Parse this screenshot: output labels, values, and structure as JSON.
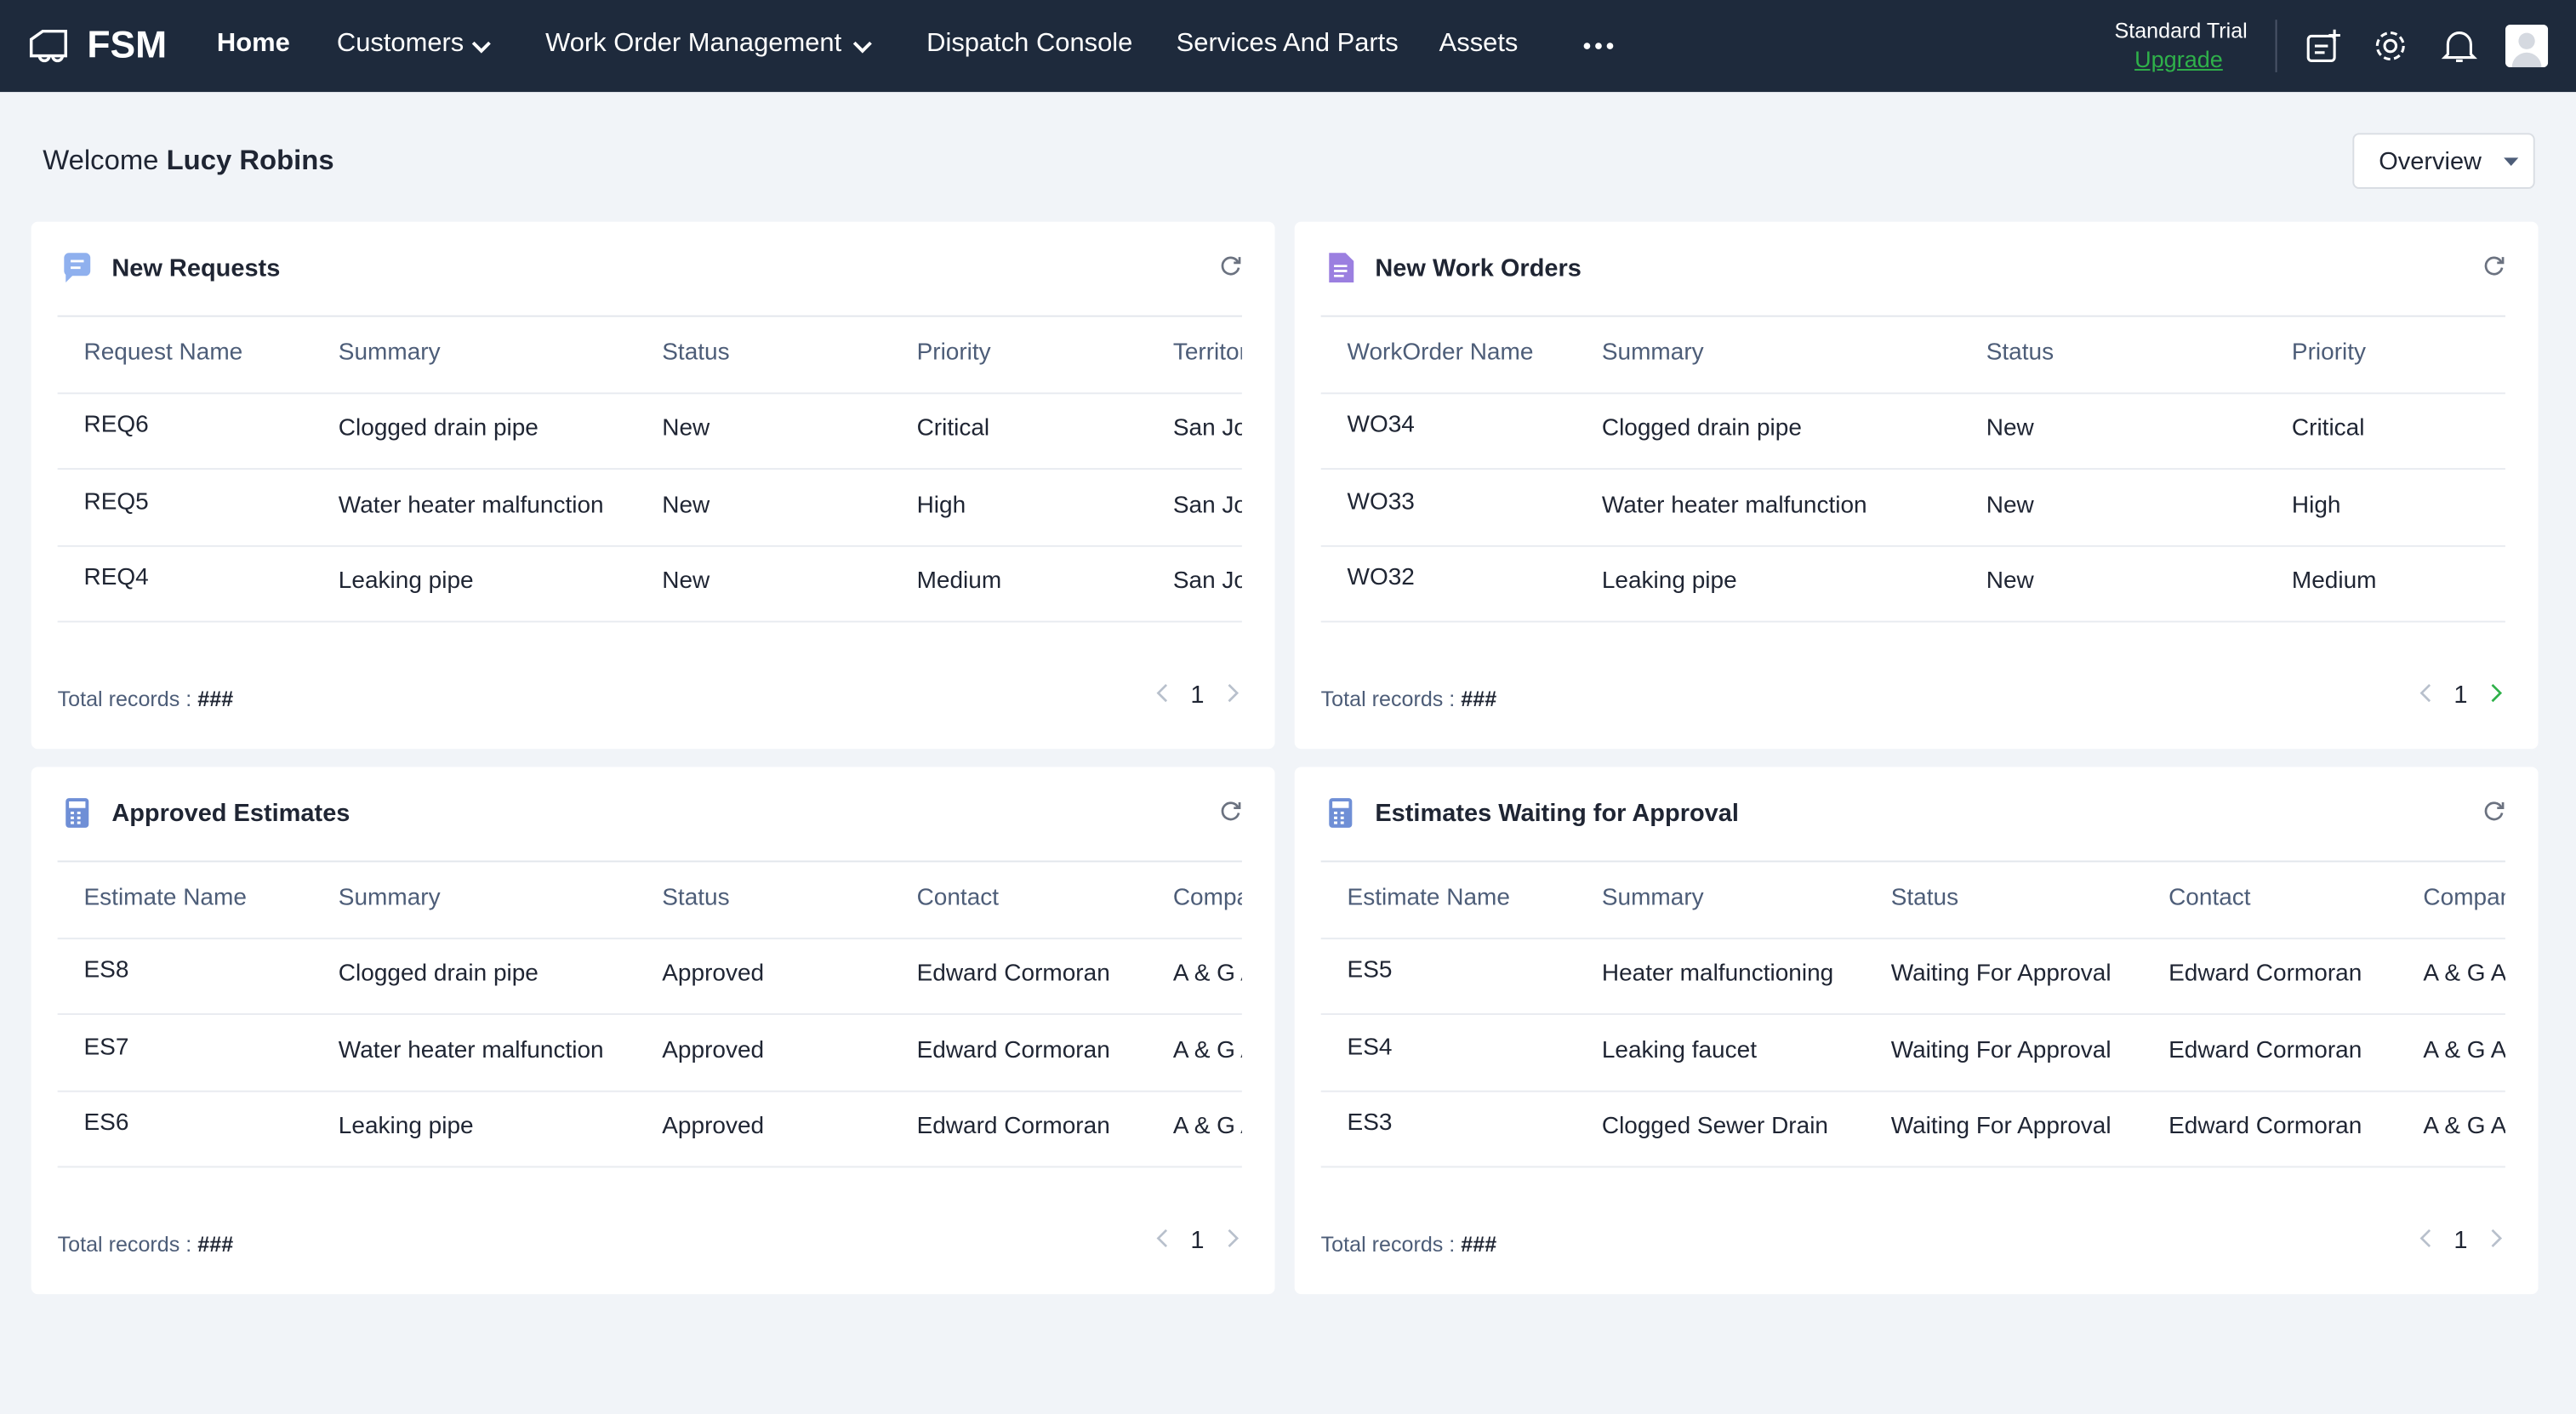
{
  "nav": {
    "brand": "FSM",
    "items": [
      "Home",
      "Customers",
      "Work Order Management",
      "Dispatch Console",
      "Services And Parts",
      "Assets"
    ],
    "plan": "Standard Trial",
    "upgrade": "Upgrade"
  },
  "welcome": {
    "greeting": "Welcome",
    "user": "Lucy Robins"
  },
  "view": "Overview",
  "panels": [
    {
      "title": "New Requests",
      "columns": [
        "Request Name",
        "Summary",
        "Status",
        "Priority",
        "Territory"
      ],
      "rows": [
        [
          "REQ6",
          "Clogged drain pipe",
          "New",
          "Critical",
          "San Jose"
        ],
        [
          "REQ5",
          "Water heater malfunction",
          "New",
          "High",
          "San Jose"
        ],
        [
          "REQ4",
          "Leaking pipe",
          "New",
          "Medium",
          "San Jose"
        ]
      ],
      "total_label": "Total records :",
      "total": "###",
      "page": "1"
    },
    {
      "title": "New Work Orders",
      "columns": [
        "WorkOrder Name",
        "Summary",
        "Status",
        "Priority"
      ],
      "rows": [
        [
          "WO34",
          "Clogged drain pipe",
          "New",
          "Critical"
        ],
        [
          "WO33",
          "Water heater malfunction",
          "New",
          "High"
        ],
        [
          "WO32",
          "Leaking pipe",
          "New",
          "Medium"
        ]
      ],
      "total_label": "Total records :",
      "total": "###",
      "page": "1"
    },
    {
      "title": "Approved Estimates",
      "columns": [
        "Estimate Name",
        "Summary",
        "Status",
        "Contact",
        "Company"
      ],
      "rows": [
        [
          "ES8",
          "Clogged drain pipe",
          "Approved",
          "Edward Cormoran",
          "A & G A"
        ],
        [
          "ES7",
          "Water heater malfunction",
          "Approved",
          "Edward Cormoran",
          "A & G A"
        ],
        [
          "ES6",
          "Leaking pipe",
          "Approved",
          "Edward Cormoran",
          "A & G A"
        ]
      ],
      "total_label": "Total records :",
      "total": "###",
      "page": "1"
    },
    {
      "title": "Estimates Waiting for Approval",
      "columns": [
        "Estimate Name",
        "Summary",
        "Status",
        "Contact",
        "Company"
      ],
      "rows": [
        [
          "ES5",
          "Heater malfunctioning",
          "Waiting For Approval",
          "Edward Cormoran",
          "A & G A"
        ],
        [
          "ES4",
          "Leaking faucet",
          "Waiting For Approval",
          "Edward Cormoran",
          "A & G A"
        ],
        [
          "ES3",
          "Clogged Sewer Drain",
          "Waiting For Approval",
          "Edward Cormoran",
          "A & G A"
        ]
      ],
      "total_label": "Total records :",
      "total": "###",
      "page": "1"
    }
  ]
}
